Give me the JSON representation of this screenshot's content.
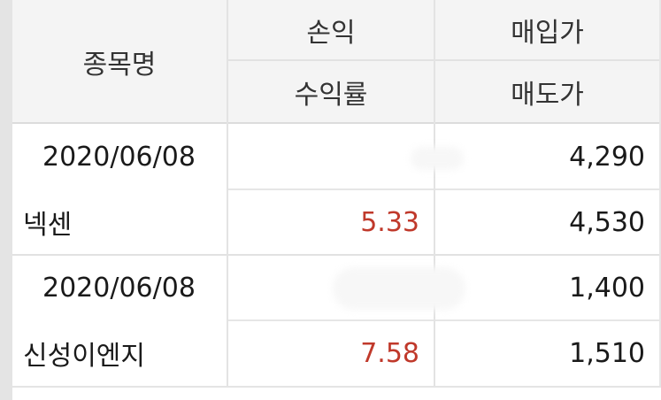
{
  "header": {
    "col_name": "종목명",
    "col_pl": "손익",
    "col_rate": "수익률",
    "col_buy": "매입가",
    "col_sell": "매도가"
  },
  "rows": [
    {
      "date": "2020/06/08",
      "name": "넥센",
      "pl": "",
      "rate": "5.33",
      "buy_price": "4,290",
      "sell_price": "4,530"
    },
    {
      "date": "2020/06/08",
      "name": "신성이엔지",
      "pl": "",
      "rate": "7.58",
      "buy_price": "1,400",
      "sell_price": "1,510"
    }
  ],
  "colors": {
    "rate_positive": "#c0392b",
    "header_bg": "#f4f4f4",
    "text": "#1a1a1a"
  }
}
